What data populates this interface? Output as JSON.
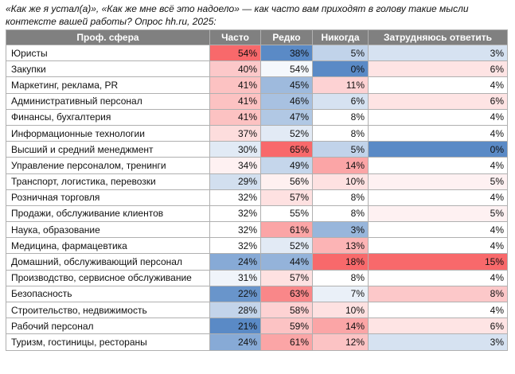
{
  "caption": "«Как же я устал(а)», «Как же мне всё это надоело» — как часто вам приходят в голову такие мысли контексте вашей работы? Опрос hh.ru, 2025:",
  "columns": [
    "Проф. сфера",
    "Часто",
    "Редко",
    "Никогда",
    "Затрудняюсь ответить"
  ],
  "colors": {
    "high": "#f8696b",
    "mid": "#ffffff",
    "low": "#5a8ac6",
    "header_bg": "#808080"
  },
  "rows": [
    {
      "sphere": "Юристы",
      "values": [
        54,
        38,
        5,
        3
      ]
    },
    {
      "sphere": "Закупки",
      "values": [
        40,
        54,
        0,
        6
      ]
    },
    {
      "sphere": "Маркетинг, реклама, PR",
      "values": [
        41,
        45,
        11,
        4
      ]
    },
    {
      "sphere": "Административный персонал",
      "values": [
        41,
        46,
        6,
        6
      ]
    },
    {
      "sphere": "Финансы, бухгалтерия",
      "values": [
        41,
        47,
        8,
        4
      ]
    },
    {
      "sphere": "Информационные технологии",
      "values": [
        37,
        52,
        8,
        4
      ]
    },
    {
      "sphere": "Высший и средний менеджмент",
      "values": [
        30,
        65,
        5,
        0
      ]
    },
    {
      "sphere": "Управление персоналом, тренинги",
      "values": [
        34,
        49,
        14,
        4
      ]
    },
    {
      "sphere": "Транспорт, логистика, перевозки",
      "values": [
        29,
        56,
        10,
        5
      ]
    },
    {
      "sphere": "Розничная торговля",
      "values": [
        32,
        57,
        8,
        4
      ]
    },
    {
      "sphere": "Продажи, обслуживание клиентов",
      "values": [
        32,
        55,
        8,
        5
      ]
    },
    {
      "sphere": "Наука, образование",
      "values": [
        32,
        61,
        3,
        4
      ]
    },
    {
      "sphere": "Медицина, фармацевтика",
      "values": [
        32,
        52,
        13,
        4
      ]
    },
    {
      "sphere": "Домашний, обслуживающий персонал",
      "values": [
        24,
        44,
        18,
        15
      ]
    },
    {
      "sphere": "Производство, сервисное обслуживание",
      "values": [
        31,
        57,
        8,
        4
      ]
    },
    {
      "sphere": "Безопасность",
      "values": [
        22,
        63,
        7,
        8
      ]
    },
    {
      "sphere": "Строительство, недвижимость",
      "values": [
        28,
        58,
        10,
        4
      ]
    },
    {
      "sphere": "Рабочий персонал",
      "values": [
        21,
        59,
        14,
        6
      ]
    },
    {
      "sphere": "Туризм, гостиницы, рестораны",
      "values": [
        24,
        61,
        12,
        3
      ]
    }
  ]
}
